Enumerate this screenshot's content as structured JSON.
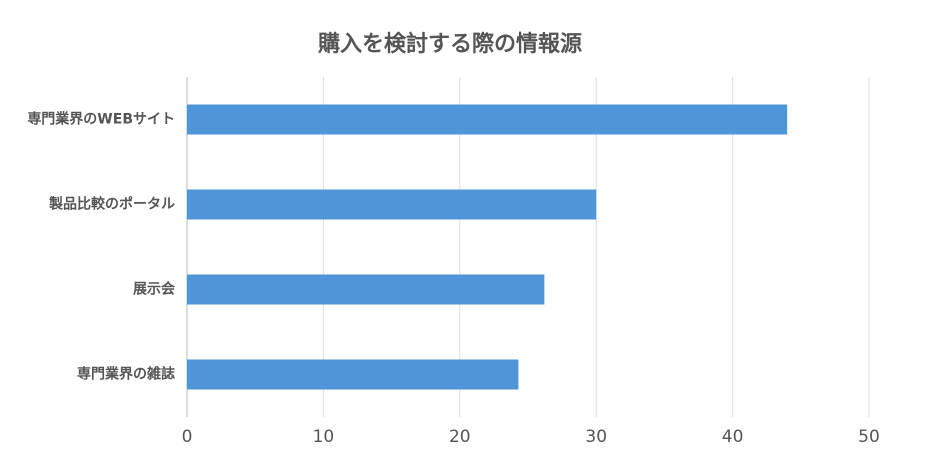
{
  "chart_data": {
    "type": "bar",
    "orientation": "horizontal",
    "title": "購入を検討する際の情報源",
    "categories": [
      "専門業界のWEBサイト",
      "製品比較のポータル",
      "展示会",
      "専門業界の雑誌"
    ],
    "values": [
      44,
      30,
      26.2,
      24.3
    ],
    "color": "#4f96d8",
    "xlim": [
      0,
      50
    ],
    "xticks": [
      0,
      10,
      20,
      30,
      40,
      50
    ],
    "grid": true
  }
}
